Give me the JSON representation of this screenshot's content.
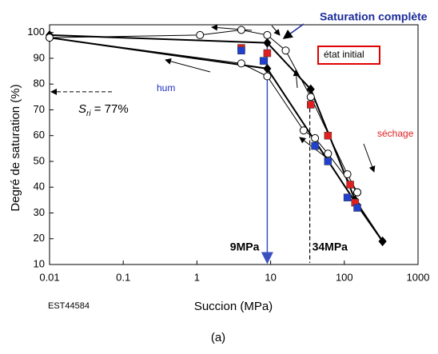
{
  "chart_data": {
    "type": "scatter",
    "xlabel": "Succion (MPa)",
    "ylabel": "Degré de saturation (%)",
    "xlim": [
      0.01,
      1000
    ],
    "ylim": [
      10,
      103
    ],
    "log_x": true,
    "xticks": [
      0.01,
      0.1,
      1,
      10,
      100,
      1000
    ],
    "yticks": [
      10,
      20,
      30,
      40,
      50,
      60,
      70,
      80,
      90,
      100
    ],
    "series": [
      {
        "marker": "diamond",
        "color": "#000000",
        "line": true,
        "x": [
          0.01,
          9,
          35,
          140,
          330
        ],
        "values": [
          99,
          96,
          78,
          35,
          19
        ]
      },
      {
        "marker": "diamond",
        "color": "#000000",
        "line": true,
        "x": [
          0.01,
          9,
          150,
          330
        ],
        "values": [
          98,
          86,
          33,
          19
        ]
      },
      {
        "marker": "circle",
        "color": "#000000",
        "line": true,
        "x": [
          0.01,
          1.1,
          4,
          9,
          16,
          35,
          110,
          150
        ],
        "values": [
          98,
          99,
          101,
          99,
          93,
          75,
          45,
          38
        ]
      },
      {
        "marker": "circle",
        "color": "#000000",
        "line": true,
        "x": [
          0.01,
          4,
          9,
          28,
          40,
          60,
          150
        ],
        "values": [
          98,
          88,
          83,
          62,
          59,
          53,
          38
        ]
      },
      {
        "marker": "square",
        "color": "#e02020",
        "line": false,
        "x": [
          4,
          9,
          35,
          60,
          120,
          140
        ],
        "values": [
          94,
          92,
          72,
          60,
          41,
          34
        ]
      },
      {
        "marker": "square",
        "color": "#2040d0",
        "line": false,
        "x": [
          4,
          8,
          40,
          60,
          110,
          150
        ],
        "values": [
          93,
          89,
          56,
          50,
          36,
          32
        ]
      }
    ],
    "vlines": [
      {
        "x": 9,
        "label": "9MPa",
        "color": "#3a4fc0",
        "style": "solid",
        "from": 98
      },
      {
        "x": 34,
        "label": "34MPa",
        "color": "#000000",
        "style": "dashed",
        "from": 78
      }
    ],
    "hline": {
      "y": 77,
      "label": [
        "S",
        "ri",
        " = 77%"
      ]
    },
    "annotations": {
      "saturation": "Saturation complète",
      "initial": "état initial",
      "wetting": "hum",
      "drying": "séchage",
      "code": "EST44584",
      "panel": "(a)"
    }
  }
}
